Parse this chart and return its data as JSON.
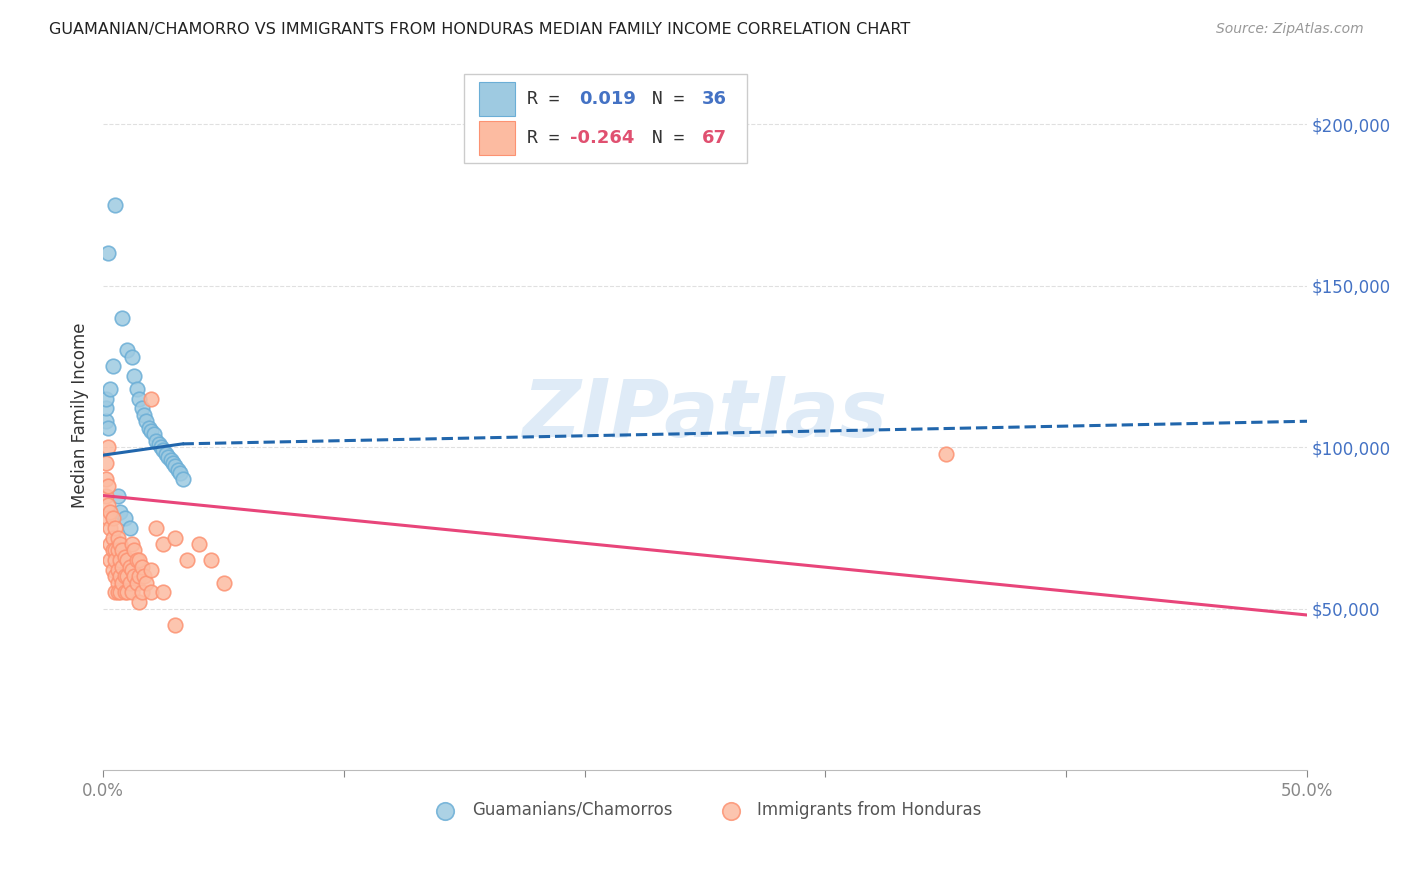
{
  "title": "GUAMANIAN/CHAMORRO VS IMMIGRANTS FROM HONDURAS MEDIAN FAMILY INCOME CORRELATION CHART",
  "source": "Source: ZipAtlas.com",
  "ylabel": "Median Family Income",
  "xlim": [
    0.0,
    0.5
  ],
  "ylim": [
    0,
    220000
  ],
  "ytick_values": [
    50000,
    100000,
    150000,
    200000
  ],
  "background_color": "#ffffff",
  "grid_color": "#e0e0e0",
  "legend_R1": "0.019",
  "legend_N1": "36",
  "legend_R2": "-0.264",
  "legend_N2": "67",
  "blue_color": "#9ecae1",
  "pink_color": "#fcbba1",
  "blue_edge_color": "#6baed6",
  "pink_edge_color": "#fc9272",
  "blue_line_color": "#2166ac",
  "pink_line_color": "#e8457a",
  "blue_scatter": [
    [
      0.002,
      160000
    ],
    [
      0.005,
      175000
    ],
    [
      0.008,
      140000
    ],
    [
      0.01,
      130000
    ],
    [
      0.012,
      128000
    ],
    [
      0.013,
      122000
    ],
    [
      0.014,
      118000
    ],
    [
      0.015,
      115000
    ],
    [
      0.016,
      112000
    ],
    [
      0.017,
      110000
    ],
    [
      0.018,
      108000
    ],
    [
      0.019,
      106000
    ],
    [
      0.02,
      105000
    ],
    [
      0.021,
      104000
    ],
    [
      0.022,
      102000
    ],
    [
      0.023,
      101000
    ],
    [
      0.024,
      100000
    ],
    [
      0.025,
      99000
    ],
    [
      0.026,
      98000
    ],
    [
      0.027,
      97000
    ],
    [
      0.028,
      96000
    ],
    [
      0.029,
      95000
    ],
    [
      0.03,
      94000
    ],
    [
      0.031,
      93000
    ],
    [
      0.032,
      92000
    ],
    [
      0.001,
      108000
    ],
    [
      0.001,
      112000
    ],
    [
      0.001,
      115000
    ],
    [
      0.002,
      106000
    ],
    [
      0.003,
      118000
    ],
    [
      0.004,
      125000
    ],
    [
      0.006,
      85000
    ],
    [
      0.007,
      80000
    ],
    [
      0.009,
      78000
    ],
    [
      0.011,
      75000
    ],
    [
      0.033,
      90000
    ]
  ],
  "pink_scatter": [
    [
      0.001,
      95000
    ],
    [
      0.001,
      90000
    ],
    [
      0.001,
      85000
    ],
    [
      0.002,
      100000
    ],
    [
      0.002,
      88000
    ],
    [
      0.002,
      82000
    ],
    [
      0.002,
      78000
    ],
    [
      0.003,
      80000
    ],
    [
      0.003,
      75000
    ],
    [
      0.003,
      70000
    ],
    [
      0.003,
      65000
    ],
    [
      0.004,
      78000
    ],
    [
      0.004,
      72000
    ],
    [
      0.004,
      68000
    ],
    [
      0.004,
      62000
    ],
    [
      0.005,
      75000
    ],
    [
      0.005,
      68000
    ],
    [
      0.005,
      65000
    ],
    [
      0.005,
      60000
    ],
    [
      0.005,
      55000
    ],
    [
      0.006,
      72000
    ],
    [
      0.006,
      68000
    ],
    [
      0.006,
      62000
    ],
    [
      0.006,
      58000
    ],
    [
      0.006,
      55000
    ],
    [
      0.007,
      70000
    ],
    [
      0.007,
      65000
    ],
    [
      0.007,
      60000
    ],
    [
      0.007,
      55000
    ],
    [
      0.008,
      68000
    ],
    [
      0.008,
      63000
    ],
    [
      0.008,
      58000
    ],
    [
      0.009,
      66000
    ],
    [
      0.009,
      60000
    ],
    [
      0.009,
      55000
    ],
    [
      0.01,
      65000
    ],
    [
      0.01,
      60000
    ],
    [
      0.01,
      55000
    ],
    [
      0.011,
      63000
    ],
    [
      0.011,
      58000
    ],
    [
      0.012,
      70000
    ],
    [
      0.012,
      62000
    ],
    [
      0.012,
      55000
    ],
    [
      0.013,
      68000
    ],
    [
      0.013,
      60000
    ],
    [
      0.014,
      65000
    ],
    [
      0.014,
      58000
    ],
    [
      0.015,
      65000
    ],
    [
      0.015,
      60000
    ],
    [
      0.015,
      52000
    ],
    [
      0.016,
      63000
    ],
    [
      0.016,
      55000
    ],
    [
      0.017,
      60000
    ],
    [
      0.018,
      58000
    ],
    [
      0.02,
      115000
    ],
    [
      0.02,
      62000
    ],
    [
      0.02,
      55000
    ],
    [
      0.022,
      75000
    ],
    [
      0.025,
      70000
    ],
    [
      0.025,
      55000
    ],
    [
      0.03,
      72000
    ],
    [
      0.03,
      45000
    ],
    [
      0.035,
      65000
    ],
    [
      0.04,
      70000
    ],
    [
      0.045,
      65000
    ],
    [
      0.05,
      58000
    ],
    [
      0.35,
      98000
    ]
  ],
  "blue_line_solid": [
    [
      0.0,
      97500
    ],
    [
      0.033,
      101000
    ]
  ],
  "blue_line_dash": [
    [
      0.033,
      101000
    ],
    [
      0.5,
      108000
    ]
  ],
  "pink_line": [
    [
      0.0,
      85000
    ],
    [
      0.5,
      48000
    ]
  ]
}
